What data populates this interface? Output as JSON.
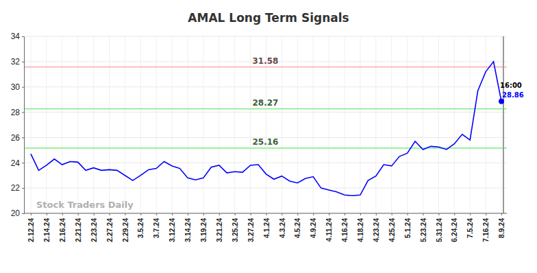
{
  "chart_data": {
    "type": "line",
    "title": "AMAL Long Term Signals",
    "watermark": "Stock Traders Daily",
    "categories": [
      "2.12.24",
      null,
      "2.14.24",
      null,
      "2.16.24",
      null,
      "2.21.24",
      null,
      "2.23.24",
      null,
      "2.27.24",
      null,
      "2.29.24",
      null,
      "3.5.24",
      null,
      "3.7.24",
      null,
      "3.12.24",
      null,
      "3.14.24",
      null,
      "3.19.24",
      null,
      "3.21.24",
      null,
      "3.25.24",
      null,
      "3.27.24",
      null,
      "4.1.24",
      null,
      "4.3.24",
      null,
      "4.5.24",
      null,
      "4.9.24",
      null,
      "4.11.24",
      null,
      "4.16.24",
      null,
      "4.18.24",
      null,
      "4.23.24",
      null,
      "4.25.24",
      null,
      "5.1.24",
      null,
      "5.23.24",
      null,
      "5.31.24",
      null,
      "6.24.24",
      null,
      "7.5.24",
      null,
      "7.16.24",
      null,
      "8.9.24"
    ],
    "values": [
      24.7,
      23.4,
      23.8,
      24.3,
      23.85,
      24.1,
      24.05,
      23.4,
      23.6,
      23.4,
      23.45,
      23.4,
      23.0,
      22.6,
      23.0,
      23.45,
      23.55,
      24.1,
      23.75,
      23.55,
      22.8,
      22.65,
      22.8,
      23.65,
      23.8,
      23.2,
      23.3,
      23.25,
      23.8,
      23.85,
      23.1,
      22.7,
      22.95,
      22.55,
      22.4,
      22.75,
      22.9,
      22.0,
      21.85,
      21.7,
      21.45,
      21.4,
      21.45,
      22.6,
      22.95,
      23.85,
      23.75,
      24.5,
      24.75,
      25.7,
      25.05,
      25.3,
      25.25,
      25.05,
      25.5,
      26.25,
      25.8,
      29.7,
      31.2,
      32.0,
      28.86
    ],
    "color": "#0000ff",
    "ylim": [
      20,
      34
    ],
    "yticks": [
      20,
      22,
      24,
      26,
      28,
      30,
      32,
      34
    ],
    "grid": true,
    "reference_lines": [
      {
        "value": 31.58,
        "color": "#ffb3b3"
      },
      {
        "value": 28.27,
        "color": "#90ee90"
      },
      {
        "value": 25.16,
        "color": "#90ee90"
      }
    ],
    "annotations": [
      {
        "text": "16:00"
      },
      {
        "text": "28.86"
      }
    ]
  }
}
